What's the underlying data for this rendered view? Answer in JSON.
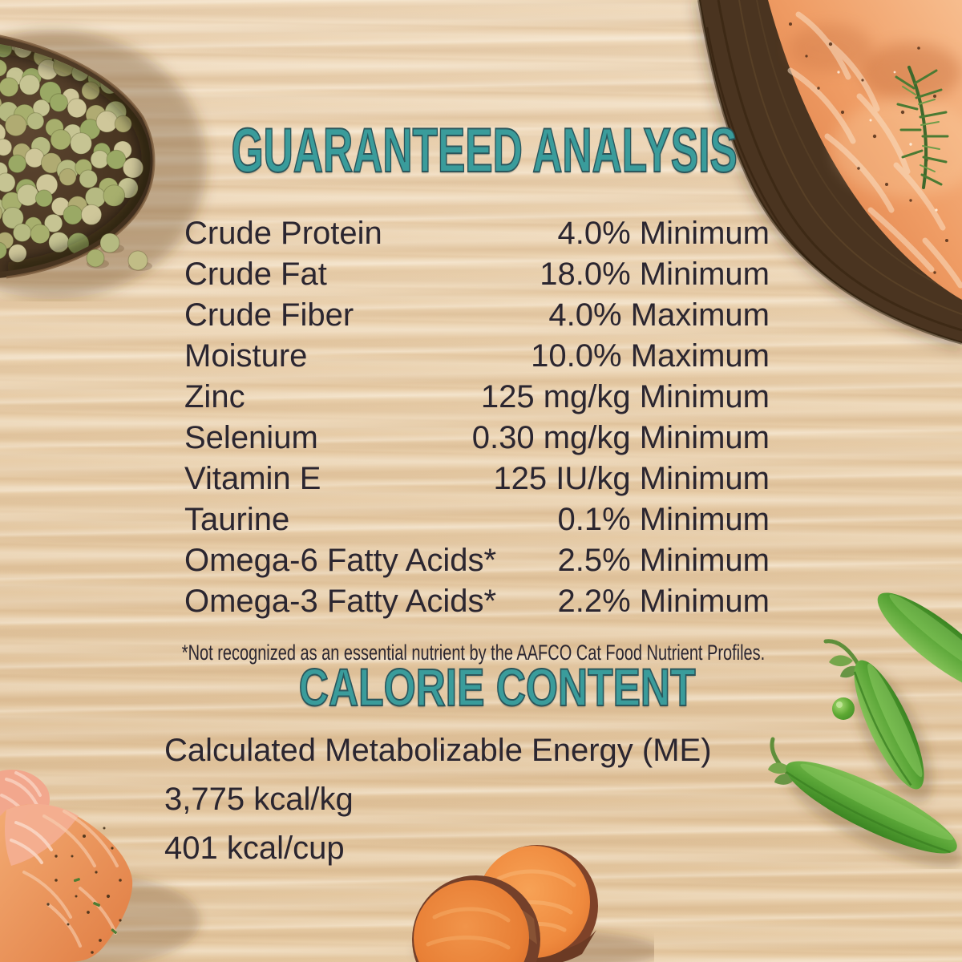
{
  "panel": {
    "accent_teal": "#3a9c9b",
    "text_color": "#2b2630",
    "wood_base": "#e9cfac"
  },
  "guaranteed_analysis": {
    "title": "GUARANTEED ANALYSIS",
    "rows": [
      {
        "label": "Crude Protein",
        "value": "4.0% Minimum"
      },
      {
        "label": "Crude Fat",
        "value": "18.0% Minimum"
      },
      {
        "label": "Crude Fiber",
        "value": "4.0% Maximum"
      },
      {
        "label": "Moisture",
        "value": "10.0% Maximum"
      },
      {
        "label": "Zinc",
        "value": "125 mg/kg Minimum"
      },
      {
        "label": "Selenium",
        "value": "0.30 mg/kg Minimum"
      },
      {
        "label": "Vitamin E",
        "value": "125 IU/kg Minimum"
      },
      {
        "label": "Taurine",
        "value": "0.1% Minimum"
      },
      {
        "label": "Omega-6 Fatty Acids*",
        "value": "2.5% Minimum"
      },
      {
        "label": "Omega-3 Fatty Acids*",
        "value": "2.2% Minimum"
      }
    ],
    "footnote": "*Not recognized as an essential nutrient by the AAFCO Cat Food Nutrient Profiles."
  },
  "calorie_content": {
    "title": "CALORIE CONTENT",
    "lines": [
      "Calculated Metabolizable Energy (ME)",
      "3,775 kcal/kg",
      "401 kcal/cup"
    ]
  },
  "decor": {
    "top_left": "bowl-of-dried-green-peas",
    "top_right": "grilled-salmon-fillet-on-wood-board-with-dill",
    "right": "fresh-pea-pods-with-pea",
    "bottom_left": "cooked-salmon-pieces",
    "bottom_center": "sweet-potato-slices"
  }
}
